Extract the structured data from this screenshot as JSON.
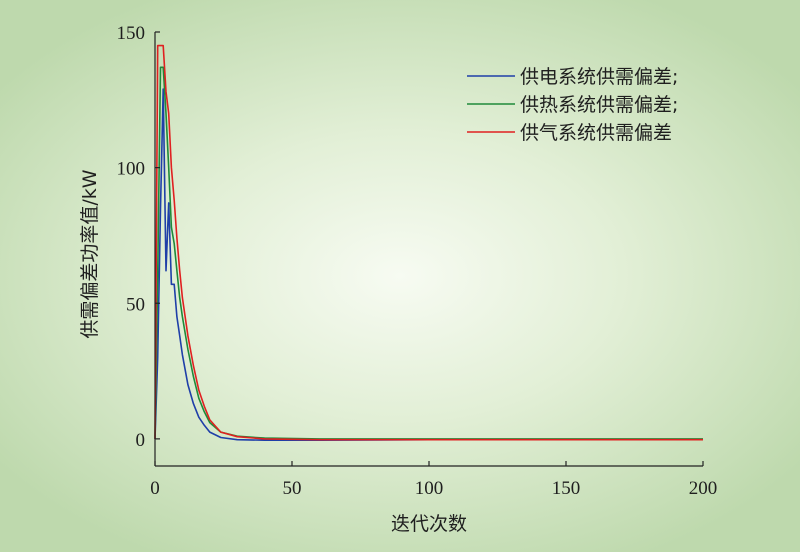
{
  "chart_data": {
    "type": "line",
    "title": "",
    "xlabel": "迭代次数",
    "ylabel": "供需偏差功率值/kW",
    "xlim": [
      0,
      200
    ],
    "ylim": [
      -10,
      150
    ],
    "xticks": [
      0,
      50,
      100,
      150,
      200
    ],
    "yticks": [
      0,
      50,
      100,
      150
    ],
    "grid": false,
    "legend_position": "top-right",
    "series": [
      {
        "name": "供电系统供需偏差;",
        "color": "#1f3fa8",
        "x": [
          0,
          1,
          2,
          3,
          4,
          5,
          6,
          7,
          8,
          9,
          10,
          12,
          14,
          16,
          18,
          20,
          24,
          30,
          40,
          60,
          100,
          150,
          200
        ],
        "y": [
          0,
          30,
          85,
          129,
          62,
          87,
          57,
          57,
          45,
          38,
          31,
          20,
          13,
          8,
          5,
          2.5,
          0.5,
          -0.3,
          -0.5,
          -0.5,
          -0.3,
          -0.3,
          -0.3
        ]
      },
      {
        "name": "供热系统供需偏差;",
        "color": "#1f8a3a",
        "x": [
          0,
          1,
          2,
          3,
          4,
          5,
          6,
          7,
          8,
          9,
          10,
          12,
          14,
          16,
          18,
          20,
          24,
          30,
          40,
          60,
          100,
          150,
          200
        ],
        "y": [
          0,
          60,
          137,
          137,
          120,
          100,
          78,
          72,
          62,
          52,
          45,
          33,
          23,
          15,
          10,
          6,
          2.5,
          1,
          0.3,
          0,
          0,
          0,
          0
        ]
      },
      {
        "name": "供气系统供需偏差",
        "color": "#e02020",
        "x": [
          0,
          1,
          2,
          3,
          4,
          5,
          6,
          7,
          8,
          9,
          10,
          12,
          14,
          16,
          18,
          20,
          24,
          30,
          40,
          60,
          100,
          150,
          200
        ],
        "y": [
          0,
          145,
          145,
          145,
          128,
          120,
          100,
          88,
          74,
          62,
          52,
          38,
          27,
          18,
          12,
          7,
          2.5,
          0.8,
          0,
          -0.3,
          -0.3,
          -0.3,
          -0.3
        ]
      }
    ]
  }
}
